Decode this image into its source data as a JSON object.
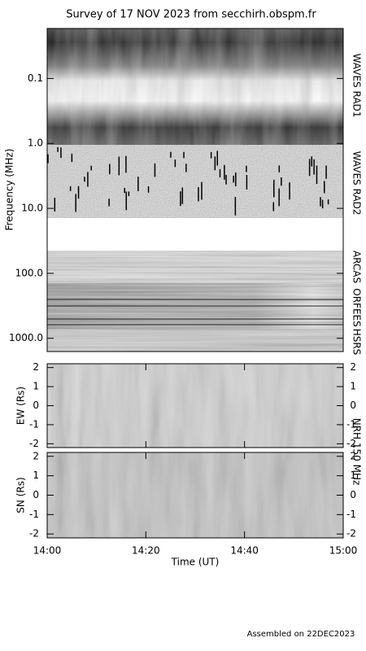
{
  "title": "Survey of 17 NOV 2023 from secchirh.obspm.fr",
  "footer": "Assembled on 22DEC2023",
  "spectrum": {
    "ylabel": "Frequency (MHz)",
    "log": true,
    "ylim": [
      0.017,
      1600
    ],
    "yticks": [
      0.1,
      {
        "value": 1,
        "label": "1.0"
      },
      {
        "value": 10,
        "label": "10.0"
      },
      {
        "value": 100,
        "label": "100.0"
      },
      {
        "value": 1000,
        "label": "1000.0"
      }
    ],
    "bands": [
      {
        "label": "WAVES RAD1"
      },
      {
        "label": "WAVES RAD2"
      },
      {
        "label": "ARCAS"
      },
      {
        "label": "ORFEES"
      },
      {
        "label": "HSRS"
      }
    ]
  },
  "nrh": {
    "label": "NRH 150 MHz",
    "panels": [
      {
        "ylabel": "EW (Rs)",
        "ylim": [
          -2.2,
          2.2
        ],
        "yticks": [
          -2,
          -1,
          0,
          1,
          2
        ]
      },
      {
        "ylabel": "SN (Rs)",
        "ylim": [
          -2.2,
          2.2
        ],
        "yticks": [
          -2,
          -1,
          0,
          1,
          2
        ]
      }
    ]
  },
  "xaxis": {
    "label": "Time (UT)",
    "xlim": [
      0,
      60
    ],
    "xticks": [
      {
        "value": 0,
        "label": "14:00"
      },
      {
        "value": 20,
        "label": "14:20"
      },
      {
        "value": 40,
        "label": "14:40"
      },
      {
        "value": 60,
        "label": "15:00"
      }
    ]
  }
}
